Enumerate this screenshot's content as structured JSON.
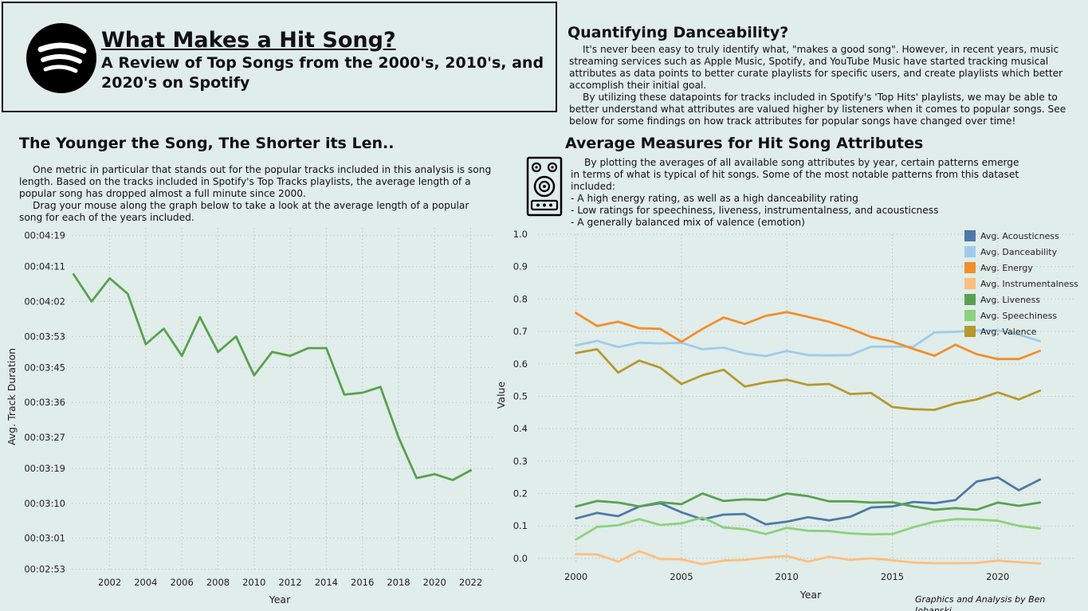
{
  "header": {
    "title": "What Makes a Hit Song?",
    "subtitle": "A Review of Top Songs from the 2000's, 2010's, and 2020's on Spotify",
    "logo_icon": "spotify-logo-icon"
  },
  "intro": {
    "title": "Quantifying Danceability?",
    "paragraphs": [
      "It's never been easy to truly identify what, \"makes a good song\". However, in recent years, music streaming services such as Apple Music, Spotify, and YouTube Music have started tracking musical attributes as data points to better curate playlists for specific users, and create playlists which better accomplish their initial goal.",
      "By utilizing these datapoints for tracks included in Spotify's 'Top Hits' playlists, we may be able to better understand what attributes are valued higher by listeners when it comes to popular songs. See below for some findings on how track attributes for popular songs have changed over time!"
    ]
  },
  "duration_section": {
    "title": "The Younger the Song, The Shorter its Len..",
    "paragraphs": [
      "One metric in particular that stands out for the popular tracks included in this analysis is song length. Based on the tracks included in Spotify's Top Tracks playlists, the average length of a popular song has dropped almost a full minute since 2000.",
      "Drag your mouse along the graph below to take a look at the average length of a popular song for each of the years included."
    ]
  },
  "attributes_section": {
    "title": "Average Measures for Hit Song Attributes",
    "icon": "speaker-icon",
    "intro": "By plotting the averages of all available song attributes by year, certain patterns emerge in terms of what is typical of hit songs. Some of the most notable patterns from this dataset included:",
    "bullets": [
      "- A high energy rating, as well as a high danceability rating",
      "- Low ratings for speechiness, liveness, instrumentalness, and acousticness",
      "- A generally balanced mix of valence (emotion)"
    ]
  },
  "credit": "Graphics and Analysis by Ben Jobanski",
  "chart_data": [
    {
      "type": "line",
      "xlabel": "Year",
      "ylabel": "Avg. Track Duration",
      "y_unit": "seconds",
      "x_ticks": [
        2002,
        2004,
        2006,
        2008,
        2010,
        2012,
        2014,
        2016,
        2018,
        2020,
        2022
      ],
      "y_ticks": [
        {
          "value": 173,
          "label": "00:02:53"
        },
        {
          "value": 181,
          "label": "00:03:01"
        },
        {
          "value": 190,
          "label": "00:03:10"
        },
        {
          "value": 199,
          "label": "00:03:19"
        },
        {
          "value": 207,
          "label": "00:03:27"
        },
        {
          "value": 216,
          "label": "00:03:36"
        },
        {
          "value": 225,
          "label": "00:03:45"
        },
        {
          "value": 233,
          "label": "00:03:53"
        },
        {
          "value": 242,
          "label": "00:04:02"
        },
        {
          "value": 251,
          "label": "00:04:11"
        },
        {
          "value": 259,
          "label": "00:04:19"
        }
      ],
      "xlim": [
        1999.9,
        2023.3
      ],
      "ylim": [
        172.5,
        261
      ],
      "grid": true,
      "color": "#59a14f",
      "x": [
        2000,
        2001,
        2002,
        2003,
        2004,
        2005,
        2006,
        2007,
        2008,
        2009,
        2010,
        2011,
        2012,
        2013,
        2014,
        2015,
        2016,
        2017,
        2018,
        2019,
        2020,
        2021,
        2022
      ],
      "values": [
        249,
        242,
        248,
        244,
        231,
        235,
        228,
        238,
        229,
        233,
        223,
        229,
        228,
        230,
        230,
        218,
        218.5,
        220,
        207,
        196.5,
        197.5,
        196,
        198.5
      ]
    },
    {
      "type": "line",
      "xlabel": "Year",
      "ylabel": "Value",
      "x_ticks": [
        2000,
        2005,
        2010,
        2015,
        2020
      ],
      "y_ticks": [
        0.0,
        0.1,
        0.2,
        0.3,
        0.4,
        0.5,
        0.6,
        0.7,
        0.8,
        0.9,
        1.0
      ],
      "xlim": [
        1998.2,
        2023.6
      ],
      "ylim": [
        -0.015,
        1.0
      ],
      "grid": true,
      "legend": "top-right",
      "x": [
        2000,
        2001,
        2002,
        2003,
        2004,
        2005,
        2006,
        2007,
        2008,
        2009,
        2010,
        2011,
        2012,
        2013,
        2014,
        2015,
        2016,
        2017,
        2018,
        2019,
        2020,
        2021,
        2022
      ],
      "series": [
        {
          "name": "Avg. Acousticness",
          "color": "#4e79a7",
          "values": [
            0.123,
            0.14,
            0.13,
            0.16,
            0.17,
            0.142,
            0.12,
            0.135,
            0.137,
            0.105,
            0.113,
            0.127,
            0.117,
            0.128,
            0.157,
            0.16,
            0.174,
            0.17,
            0.18,
            0.237,
            0.25,
            0.21,
            0.243
          ]
        },
        {
          "name": "Avg. Danceability",
          "color": "#a0cbe8",
          "values": [
            0.657,
            0.671,
            0.652,
            0.665,
            0.663,
            0.665,
            0.645,
            0.65,
            0.632,
            0.624,
            0.64,
            0.627,
            0.626,
            0.627,
            0.653,
            0.653,
            0.653,
            0.697,
            0.699,
            0.703,
            0.703,
            0.69,
            0.67
          ]
        },
        {
          "name": "Avg. Energy",
          "color": "#f28e2b",
          "values": [
            0.757,
            0.717,
            0.73,
            0.71,
            0.708,
            0.668,
            0.708,
            0.743,
            0.723,
            0.748,
            0.76,
            0.745,
            0.73,
            0.709,
            0.683,
            0.669,
            0.646,
            0.625,
            0.659,
            0.63,
            0.615,
            0.615,
            0.64
          ]
        },
        {
          "name": "Avg. Instrumentalness",
          "color": "#ffbe7d",
          "values": [
            0.013,
            0.012,
            -0.01,
            0.022,
            -0.002,
            -0.003,
            -0.018,
            -0.007,
            -0.005,
            0.003,
            0.007,
            -0.01,
            0.005,
            -0.005,
            0.0,
            -0.006,
            -0.013,
            -0.015,
            -0.015,
            -0.014,
            -0.007,
            -0.012,
            -0.016
          ]
        },
        {
          "name": "Avg. Liveness",
          "color": "#59a14f",
          "values": [
            0.16,
            0.177,
            0.172,
            0.16,
            0.173,
            0.167,
            0.2,
            0.177,
            0.182,
            0.18,
            0.2,
            0.192,
            0.176,
            0.176,
            0.172,
            0.173,
            0.16,
            0.15,
            0.155,
            0.15,
            0.172,
            0.162,
            0.172
          ]
        },
        {
          "name": "Avg. Speechiness",
          "color": "#8cd17d",
          "values": [
            0.058,
            0.097,
            0.102,
            0.121,
            0.103,
            0.108,
            0.126,
            0.095,
            0.09,
            0.075,
            0.094,
            0.085,
            0.084,
            0.077,
            0.074,
            0.075,
            0.096,
            0.113,
            0.121,
            0.12,
            0.116,
            0.1,
            0.092
          ]
        },
        {
          "name": "Avg. Valence",
          "color": "#b6992d",
          "values": [
            0.633,
            0.645,
            0.573,
            0.61,
            0.588,
            0.538,
            0.565,
            0.582,
            0.53,
            0.543,
            0.551,
            0.535,
            0.538,
            0.507,
            0.51,
            0.467,
            0.46,
            0.458,
            0.478,
            0.49,
            0.512,
            0.49,
            0.517
          ]
        }
      ]
    }
  ]
}
